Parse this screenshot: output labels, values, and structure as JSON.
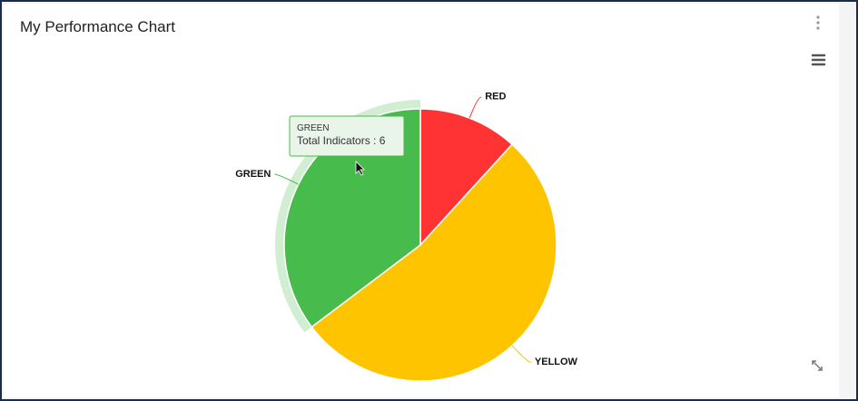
{
  "header": {
    "title": "My Performance Chart"
  },
  "chart_data": {
    "type": "pie",
    "categories": [
      "RED",
      "YELLOW",
      "GREEN"
    ],
    "values": [
      2,
      9,
      6
    ],
    "colors": [
      "#ff3333",
      "#ffc400",
      "#47bb4b"
    ],
    "tooltip": {
      "category_index": 2,
      "label": "Total Indicators :"
    }
  }
}
